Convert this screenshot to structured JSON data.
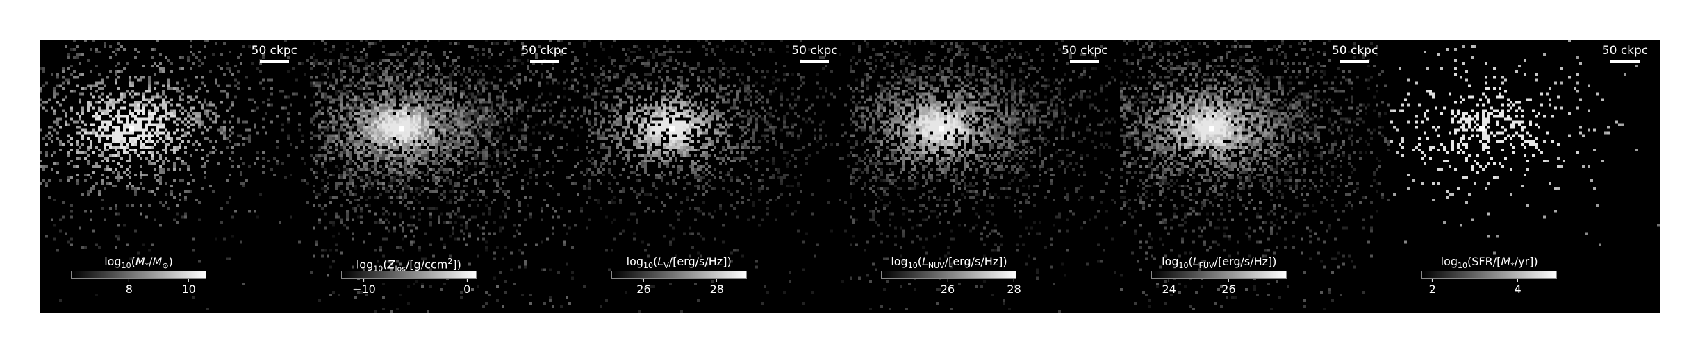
{
  "scale_bar_label": "50 ckpc",
  "panels": [
    {
      "id": "mstar",
      "label_html": "log<sub>10</sub>(<i>M</i><sub>*</sub>/<i>M</i><sub>⊙</sub>)",
      "cmap": "gray",
      "ticks": [
        "8",
        "10"
      ],
      "tick_fracs": [
        0.43,
        0.87
      ],
      "map": {
        "level": 0.55,
        "spread": 0.1,
        "satellite": 0.35,
        "noise": 0.25
      }
    },
    {
      "id": "zlos",
      "label_html": "log<sub>10</sub>(<i>Z</i><sub>los</sub>/[g/ccm<sup>2</sup>])",
      "cmap": "gray",
      "ticks": [
        "−10",
        "0"
      ],
      "tick_fracs": [
        0.17,
        0.93
      ],
      "map": {
        "level": 0.75,
        "spread": 0.22,
        "satellite": 0.7,
        "noise": 0.55
      }
    },
    {
      "id": "lv",
      "label_html": "log<sub>10</sub>(<i>L</i><sub>V</sub>/[erg/s/Hz])",
      "cmap": "gray",
      "ticks": [
        "26",
        "28"
      ],
      "tick_fracs": [
        0.24,
        0.78
      ],
      "map": {
        "level": 0.45,
        "spread": 0.16,
        "satellite": 0.4,
        "noise": 0.35
      }
    },
    {
      "id": "lnuv",
      "label_html": "log<sub>10</sub>(<i>L</i><sub>NUV</sub>/[erg/s/Hz])",
      "cmap": "gray",
      "ticks": [
        "26",
        "28"
      ],
      "tick_fracs": [
        0.49,
        0.98
      ],
      "map": {
        "level": 0.55,
        "spread": 0.18,
        "satellite": 0.5,
        "noise": 0.45
      }
    },
    {
      "id": "lfuv",
      "label_html": "log<sub>10</sub>(<i>L</i><sub>FUV</sub>/[erg/s/Hz])",
      "cmap": "gray",
      "ticks": [
        "24",
        "26"
      ],
      "tick_fracs": [
        0.13,
        0.57
      ],
      "map": {
        "level": 0.65,
        "spread": 0.19,
        "satellite": 0.6,
        "noise": 0.5
      }
    },
    {
      "id": "sfr",
      "label_html": "log<sub>10</sub>(SFR/[<i>M</i><sub>*</sub>/yr])",
      "cmap": "gray",
      "ticks": [
        "2",
        "4"
      ],
      "tick_fracs": [
        0.08,
        0.71
      ],
      "map": {
        "level": 0.2,
        "spread": 0.03,
        "satellite": 0.05,
        "noise": 0.03
      }
    }
  ]
}
